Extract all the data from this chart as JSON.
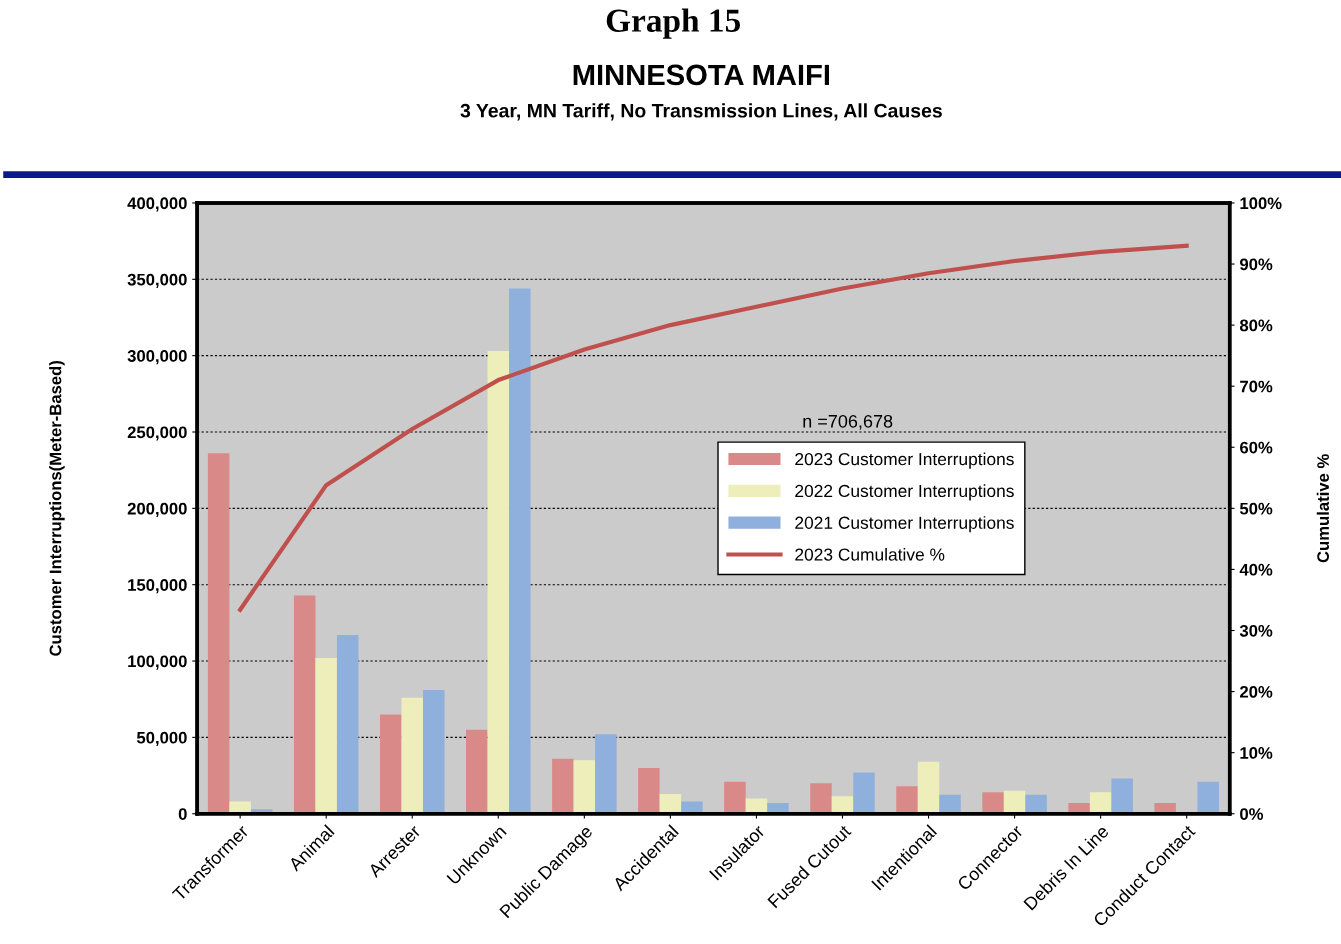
{
  "chart_data": {
    "type": "bar",
    "title": "Graph 15",
    "subtitle": "MINNESOTA MAIFI\n3 Year, MN Tariff, No Transmission Lines, All Causes",
    "ylabel": "Customer Interruptions(Meter-Based)",
    "y2label": "Cumulative %",
    "categories": [
      "Transformer",
      "Animal",
      "Arrester",
      "Unknown",
      "Public Damage",
      "Accidental",
      "Insulator",
      "Fused Cutout",
      "Intentional",
      "Connector",
      "Debris In Line",
      "Conduct Contact"
    ],
    "series": [
      {
        "name": "2023 Customer Interruptions",
        "color": "#d98a88",
        "values": [
          236000,
          143000,
          65000,
          55000,
          36000,
          30000,
          21000,
          20000,
          18000,
          14000,
          7000,
          7000
        ]
      },
      {
        "name": "2022 Customer Interruptions",
        "color": "#eeeebb",
        "values": [
          8000,
          102000,
          76000,
          303000,
          35000,
          13000,
          10000,
          11500,
          34000,
          15000,
          14000,
          0
        ]
      },
      {
        "name": "2021 Customer Interruptions",
        "color": "#8fb0dc",
        "values": [
          3000,
          117000,
          81000,
          344000,
          52000,
          8000,
          7000,
          27000,
          12500,
          12500,
          23000,
          21000
        ]
      },
      {
        "name": "2023 Cumulative %",
        "type": "line",
        "axis": "y2",
        "color": "#c0504d",
        "values": [
          33.4,
          53.8,
          63,
          71,
          76,
          80,
          83,
          86,
          88.5,
          90.5,
          92,
          93
        ]
      }
    ],
    "ylim": [
      0,
      400000
    ],
    "yticks": [
      {
        "value": 0,
        "label": "0"
      },
      {
        "value": 50000,
        "label": "50,000"
      },
      {
        "value": 100000,
        "label": "100,000"
      },
      {
        "value": 150000,
        "label": "150,000"
      },
      {
        "value": 200000,
        "label": "200,000"
      },
      {
        "value": 250000,
        "label": "250,000"
      },
      {
        "value": 300000,
        "label": "300,000"
      },
      {
        "value": 350000,
        "label": "350,000"
      },
      {
        "value": 400000,
        "label": "400,000"
      }
    ],
    "y2lim": [
      0,
      100
    ],
    "y2ticks": [
      {
        "value": 0,
        "label": "0%"
      },
      {
        "value": 10,
        "label": "10%"
      },
      {
        "value": 20,
        "label": "20%"
      },
      {
        "value": 30,
        "label": "30%"
      },
      {
        "value": 40,
        "label": "40%"
      },
      {
        "value": 50,
        "label": "50%"
      },
      {
        "value": 60,
        "label": "60%"
      },
      {
        "value": 70,
        "label": "70%"
      },
      {
        "value": 80,
        "label": "80%"
      },
      {
        "value": 90,
        "label": "90%"
      },
      {
        "value": 100,
        "label": "100%"
      }
    ],
    "annotations": [
      "n =706,678"
    ],
    "grid": "y",
    "legend": "center right",
    "marker": "none",
    "line_style": "solid"
  }
}
